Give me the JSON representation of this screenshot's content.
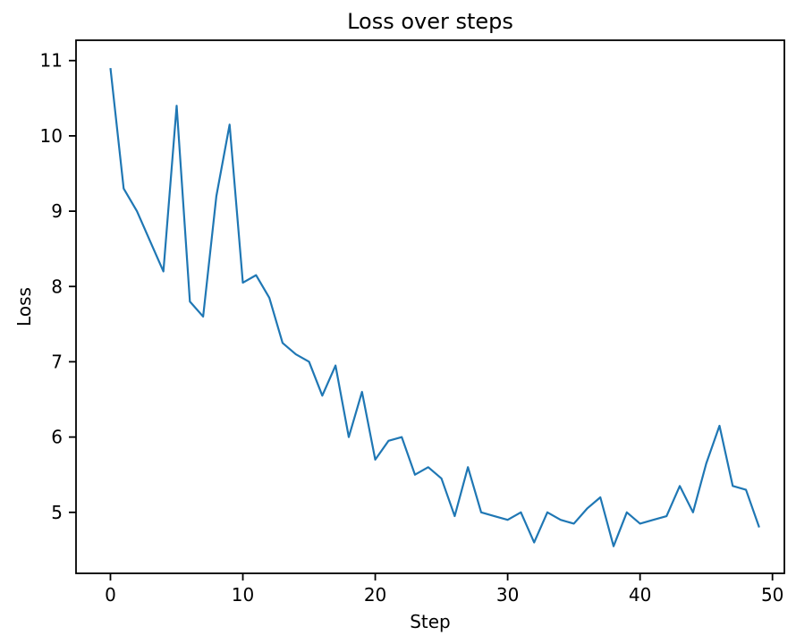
{
  "chart_data": {
    "type": "line",
    "title": "Loss over steps",
    "xlabel": "Step",
    "ylabel": "Loss",
    "x": [
      0,
      1,
      2,
      3,
      4,
      5,
      6,
      7,
      8,
      9,
      10,
      11,
      12,
      13,
      14,
      15,
      16,
      17,
      18,
      19,
      20,
      21,
      22,
      23,
      24,
      25,
      26,
      27,
      28,
      29,
      30,
      31,
      32,
      33,
      34,
      35,
      36,
      37,
      38,
      39,
      40,
      41,
      42,
      43,
      44,
      45,
      46,
      47,
      48,
      49
    ],
    "series": [
      {
        "name": "loss",
        "color": "#1f77b4",
        "values": [
          10.9,
          9.3,
          9.0,
          8.6,
          8.2,
          10.4,
          7.8,
          7.6,
          9.2,
          10.15,
          8.05,
          8.15,
          7.85,
          7.25,
          7.1,
          7.0,
          6.55,
          6.95,
          6.0,
          6.6,
          5.7,
          5.95,
          6.0,
          5.5,
          5.6,
          5.45,
          4.95,
          5.6,
          5.0,
          4.95,
          4.9,
          5.0,
          4.6,
          5.0,
          4.9,
          4.85,
          5.05,
          5.2,
          4.55,
          5.0,
          4.85,
          4.9,
          4.95,
          5.35,
          5.0,
          5.65,
          6.15,
          5.35,
          5.3,
          4.8
        ]
      }
    ],
    "xticks": [
      0,
      10,
      20,
      30,
      40,
      50
    ],
    "yticks": [
      5,
      6,
      7,
      8,
      9,
      10,
      11
    ],
    "xlim": [
      -2.6,
      50.9
    ],
    "ylim": [
      4.19,
      11.27
    ],
    "grid": false,
    "legend": "none",
    "background_color": "#ffffff",
    "axis_color": "#000000",
    "line_width": 2.2
  }
}
